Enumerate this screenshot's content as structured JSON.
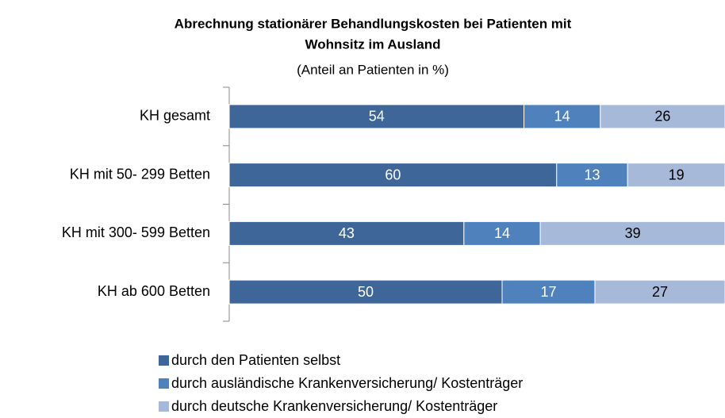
{
  "chart_data": {
    "type": "stacked-bar-horizontal",
    "title": [
      "Abrechnung stationärer Behandlungskosten  bei Patienten mit",
      "Wohnsitz im Ausland"
    ],
    "subtitle": "(Anteil an Patienten in %)",
    "categories": [
      "KH gesamt",
      "KH mit 50- 299 Betten",
      "KH mit 300- 599 Betten",
      "KH ab 600 Betten"
    ],
    "series": [
      {
        "name": "durch den Patienten selbst",
        "color": "#3f6699",
        "values": [
          54,
          60,
          43,
          50
        ]
      },
      {
        "name": "durch ausländische Krankenversicherung/ Kostenträger",
        "color": "#4f81bd",
        "values": [
          14,
          13,
          14,
          17
        ]
      },
      {
        "name": "durch deutsche Krankenversicherung/ Kostenträger",
        "color": "#a7b9d9",
        "values": [
          26,
          19,
          39,
          27
        ]
      }
    ]
  }
}
